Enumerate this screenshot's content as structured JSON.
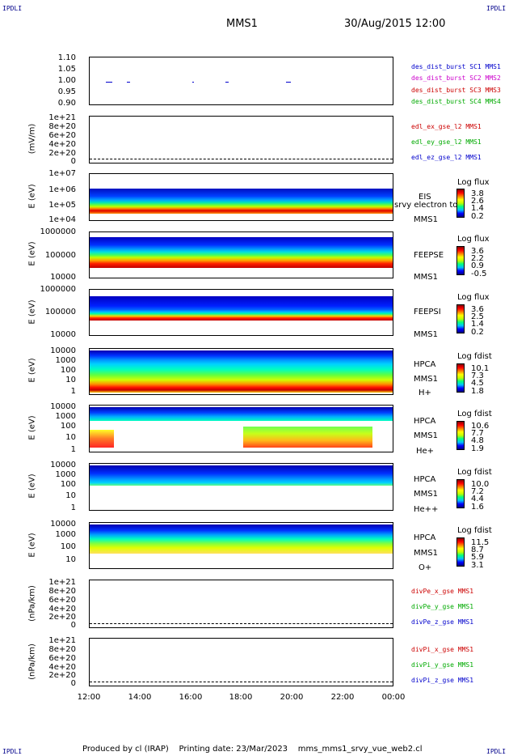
{
  "corner_labels": {
    "top_left": "IPDLI",
    "top_right": "IPDLI",
    "bottom_left": "IPDLI",
    "bottom_right": "IPDLI"
  },
  "header": {
    "spacecraft": "MMS1",
    "datetime": "30/Aug/2015 12:00"
  },
  "footer": {
    "producer": "Produced by cl (IRAP)",
    "printing_date": "Printing date: 23/Mar/2023",
    "file": "mms_mms1_srvy_vue_web2.cl"
  },
  "chart_data": {
    "type": "heatmap",
    "x_ticks": [
      "12:00",
      "14:00",
      "16:00",
      "18:00",
      "20:00",
      "22:00",
      "00:00"
    ],
    "panels": [
      {
        "id": "p1",
        "ylabel": "",
        "yticks": [
          "1.10",
          "1.05",
          "1.00",
          "0.95",
          "0.90"
        ],
        "legend": [
          {
            "text": "des_dist_burst SC1 MMS1",
            "color": "#0000cc"
          },
          {
            "text": "des_dist_burst SC2 MMS2",
            "color": "#cc00cc"
          },
          {
            "text": "des_dist_burst SC3 MMS3",
            "color": "#cc0000"
          },
          {
            "text": "des_dist_burst SC4 MMS4",
            "color": "#00aa00"
          }
        ]
      },
      {
        "id": "p2",
        "ylabel": "(mV/m)",
        "yticks": [
          "1e+21",
          "8e+20",
          "6e+20",
          "4e+20",
          "2e+20",
          "0"
        ],
        "legend": [
          {
            "text": "edl_ex_gse_l2 MMS1",
            "color": "#cc0000"
          },
          {
            "text": "edl_ey_gse_l2 MMS1",
            "color": "#00aa00"
          },
          {
            "text": "edl_ez_gse_l2 MMS1",
            "color": "#0000cc"
          }
        ]
      },
      {
        "id": "p3",
        "ylabel": "E (eV)",
        "yticks": [
          "1e+07",
          "1e+06",
          "1e+05",
          "1e+04"
        ],
        "side": [
          "EIS",
          "srvy electron to",
          "MMS1"
        ],
        "cb_title": "Log flux",
        "cb_ticks": [
          "3.8",
          "2.6",
          "1.4",
          "0.2"
        ]
      },
      {
        "id": "p4",
        "ylabel": "E (eV)",
        "yticks": [
          "1000000",
          "100000",
          "10000"
        ],
        "side": [
          "FEEPSE",
          "MMS1"
        ],
        "cb_title": "Log flux",
        "cb_ticks": [
          "3.6",
          "2.2",
          "0.9",
          "-0.5"
        ]
      },
      {
        "id": "p5",
        "ylabel": "E (eV)",
        "yticks": [
          "1000000",
          "100000",
          "10000"
        ],
        "side": [
          "FEEPSI",
          "MMS1"
        ],
        "cb_title": "Log flux",
        "cb_ticks": [
          "3.6",
          "2.5",
          "1.4",
          "0.2"
        ]
      },
      {
        "id": "p6",
        "ylabel": "E (eV)",
        "yticks": [
          "10000",
          "1000",
          "100",
          "10",
          "1"
        ],
        "side": [
          "HPCA",
          "MMS1",
          "H+"
        ],
        "cb_title": "Log fdist",
        "cb_ticks": [
          "10.1",
          "7.3",
          "4.5",
          "1.8"
        ]
      },
      {
        "id": "p7",
        "ylabel": "E (eV)",
        "yticks": [
          "10000",
          "1000",
          "100",
          "10",
          "1"
        ],
        "side": [
          "HPCA",
          "MMS1",
          "He+"
        ],
        "cb_title": "Log fdist",
        "cb_ticks": [
          "10.6",
          "7.7",
          "4.8",
          "1.9"
        ]
      },
      {
        "id": "p8",
        "ylabel": "E (eV)",
        "yticks": [
          "10000",
          "1000",
          "100",
          "10",
          "1"
        ],
        "side": [
          "HPCA",
          "MMS1",
          "He++"
        ],
        "cb_title": "Log fdist",
        "cb_ticks": [
          "10.0",
          "7.2",
          "4.4",
          "1.6"
        ]
      },
      {
        "id": "p9",
        "ylabel": "E (eV)",
        "yticks": [
          "10000",
          "1000",
          "100",
          "10"
        ],
        "side": [
          "HPCA",
          "MMS1",
          "O+"
        ],
        "cb_title": "Log fdist",
        "cb_ticks": [
          "11.5",
          "8.7",
          "5.9",
          "3.1"
        ]
      },
      {
        "id": "p10",
        "ylabel": "(nPa/km)",
        "yticks": [
          "1e+21",
          "8e+20",
          "6e+20",
          "4e+20",
          "2e+20",
          "0"
        ],
        "legend": [
          {
            "text": "divPe_x_gse MMS1",
            "color": "#cc0000"
          },
          {
            "text": "divPe_y_gse MMS1",
            "color": "#00aa00"
          },
          {
            "text": "divPe_z_gse MMS1",
            "color": "#0000cc"
          }
        ]
      },
      {
        "id": "p11",
        "ylabel": "(nPa/km)",
        "yticks": [
          "1e+21",
          "8e+20",
          "6e+20",
          "4e+20",
          "2e+20",
          "0"
        ],
        "legend": [
          {
            "text": "divPi_x_gse MMS1",
            "color": "#cc0000"
          },
          {
            "text": "divPi_y_gse MMS1",
            "color": "#00aa00"
          },
          {
            "text": "divPi_z_gse MMS1",
            "color": "#0000cc"
          }
        ]
      }
    ]
  }
}
